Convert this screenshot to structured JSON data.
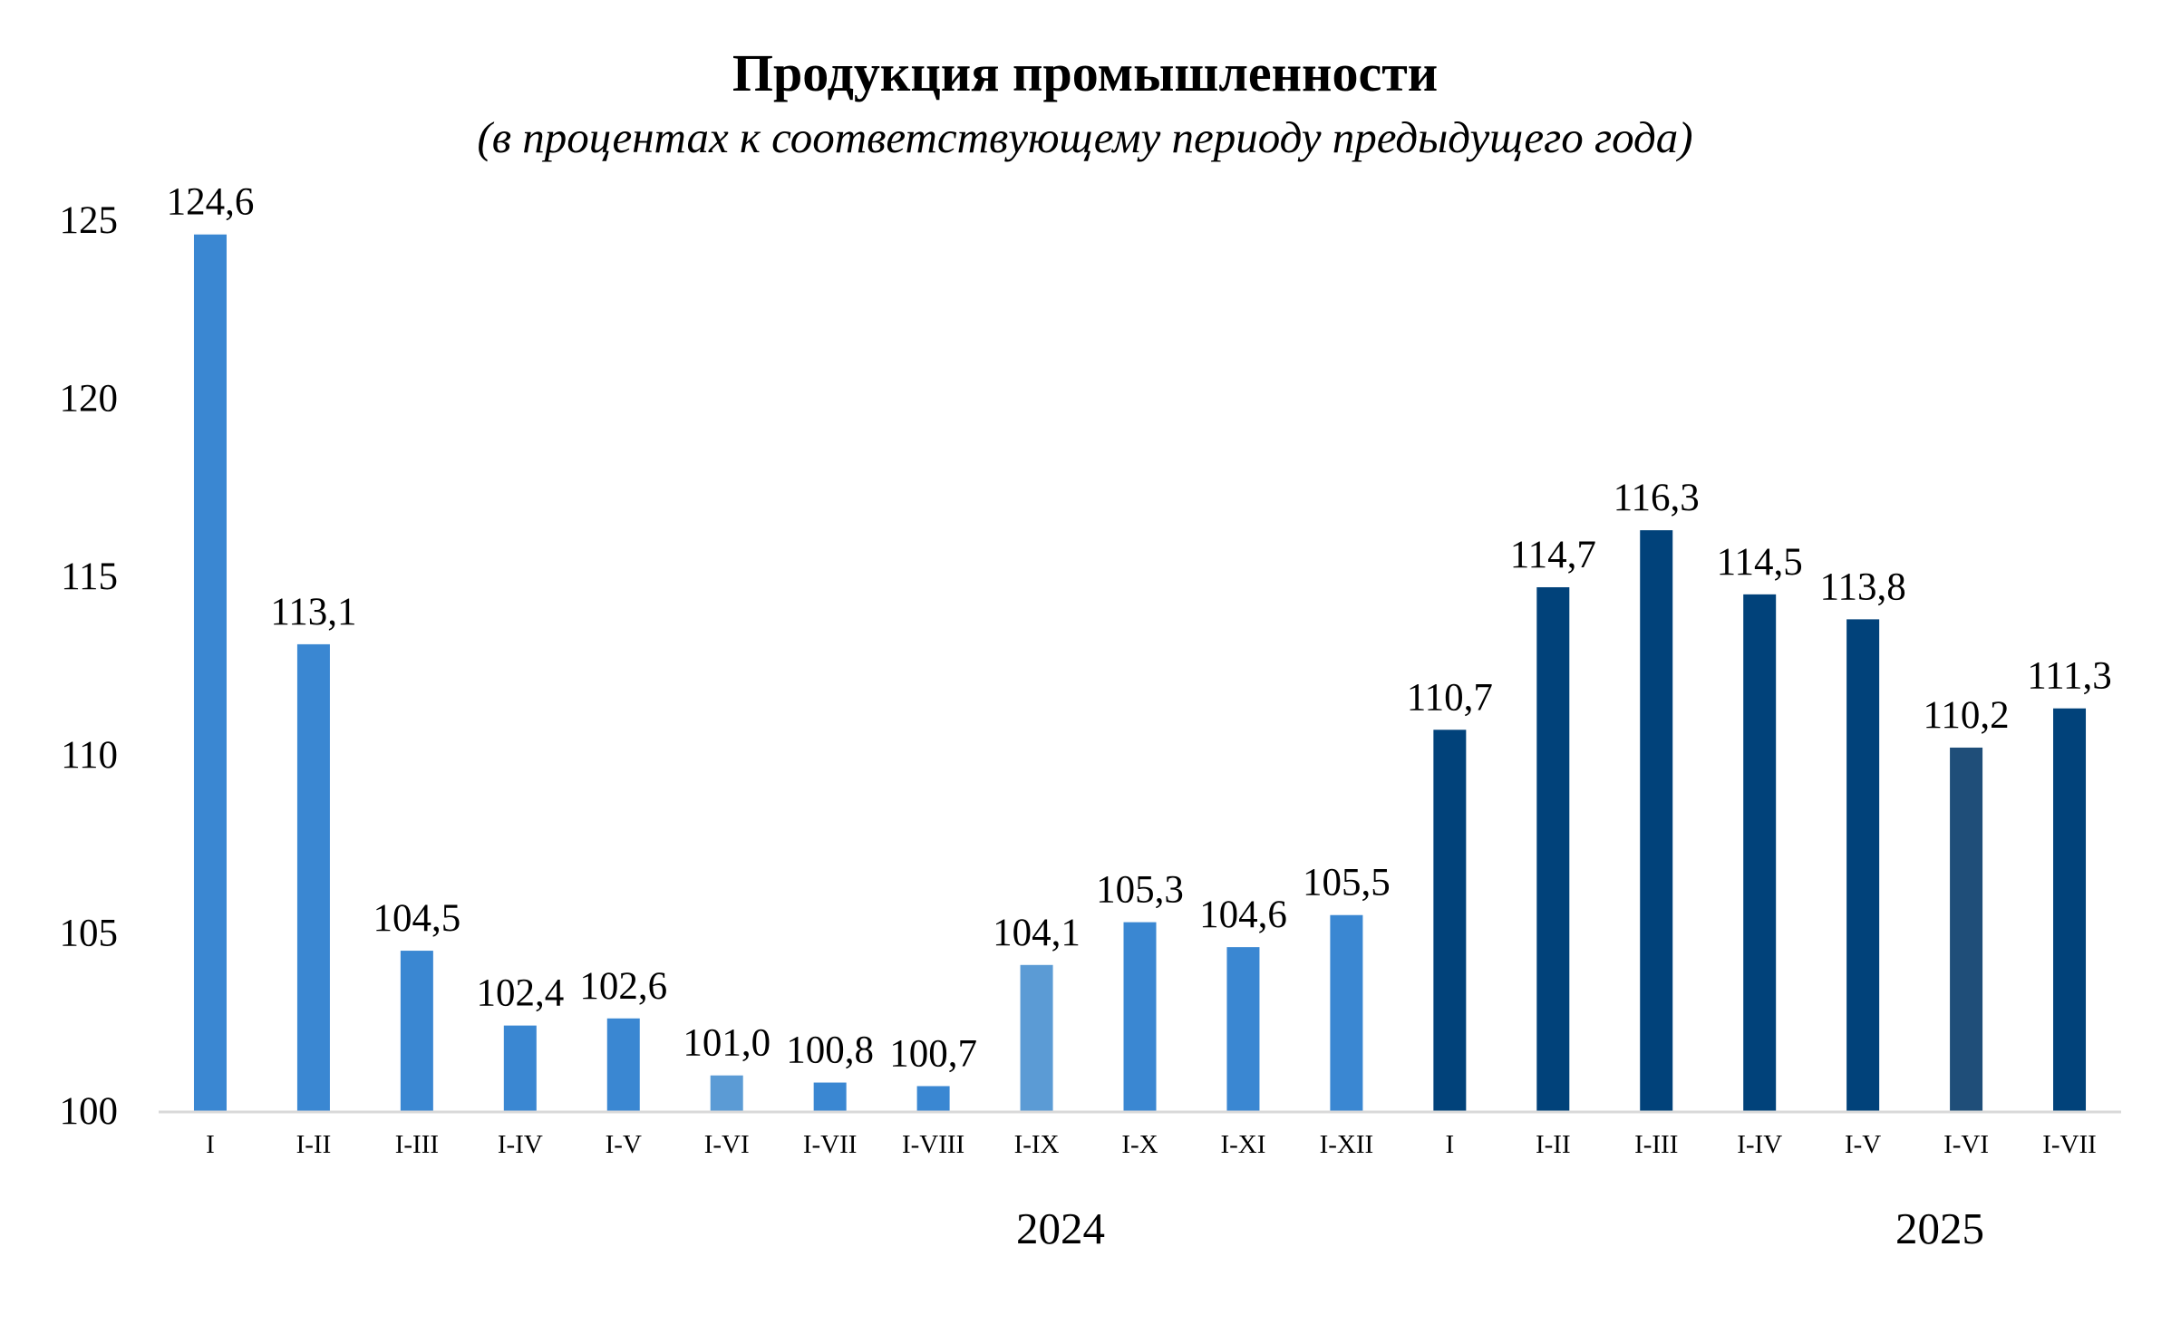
{
  "chart_data": {
    "type": "bar",
    "title": "Продукция промышленности",
    "subtitle": "(в процентах к соответствующему периоду предыдущего года)",
    "xlabel": "",
    "ylabel": "",
    "ylim": [
      100,
      125
    ],
    "yticks": [
      "100",
      "105",
      "110",
      "115",
      "120",
      "125"
    ],
    "ytick_values": [
      100,
      105,
      110,
      115,
      120,
      125
    ],
    "grid": false,
    "legend": "none",
    "categories": [
      "I",
      "I-II",
      "I-III",
      "I-IV",
      "I-V",
      "I-VI",
      "I-VII",
      "I-VIII",
      "I-IX",
      "I-X",
      "I-XI",
      "I-XII",
      "I",
      "I-II",
      "I-III",
      "I-IV",
      "I-V",
      "I-VI",
      "I-VII"
    ],
    "values": [
      124.6,
      113.1,
      104.5,
      102.4,
      102.6,
      101.0,
      100.8,
      100.7,
      104.1,
      105.3,
      104.6,
      105.5,
      110.7,
      114.7,
      116.3,
      114.5,
      113.8,
      110.2,
      111.3
    ],
    "value_labels": [
      "124,6",
      "113,1",
      "104,5",
      "102,4",
      "102,6",
      "101,0",
      "100,8",
      "100,7",
      "104,1",
      "105,3",
      "104,6",
      "105,5",
      "110,7",
      "114,7",
      "116,3",
      "114,5",
      "113,8",
      "110,2",
      "111,3"
    ],
    "groups": [
      {
        "label": "2024",
        "start": 0,
        "end": 11
      },
      {
        "label": "2025",
        "start": 12,
        "end": 18
      }
    ],
    "colors": [
      "#3a87d2",
      "#3a87d2",
      "#3a87d2",
      "#3a87d2",
      "#3a87d2",
      "#5b9bd5",
      "#3a87d2",
      "#3a87d2",
      "#5b9bd5",
      "#3a87d2",
      "#3a87d2",
      "#3a87d2",
      "#01427a",
      "#01427a",
      "#01427a",
      "#01427a",
      "#01427a",
      "#1f4e79",
      "#01427a"
    ]
  }
}
